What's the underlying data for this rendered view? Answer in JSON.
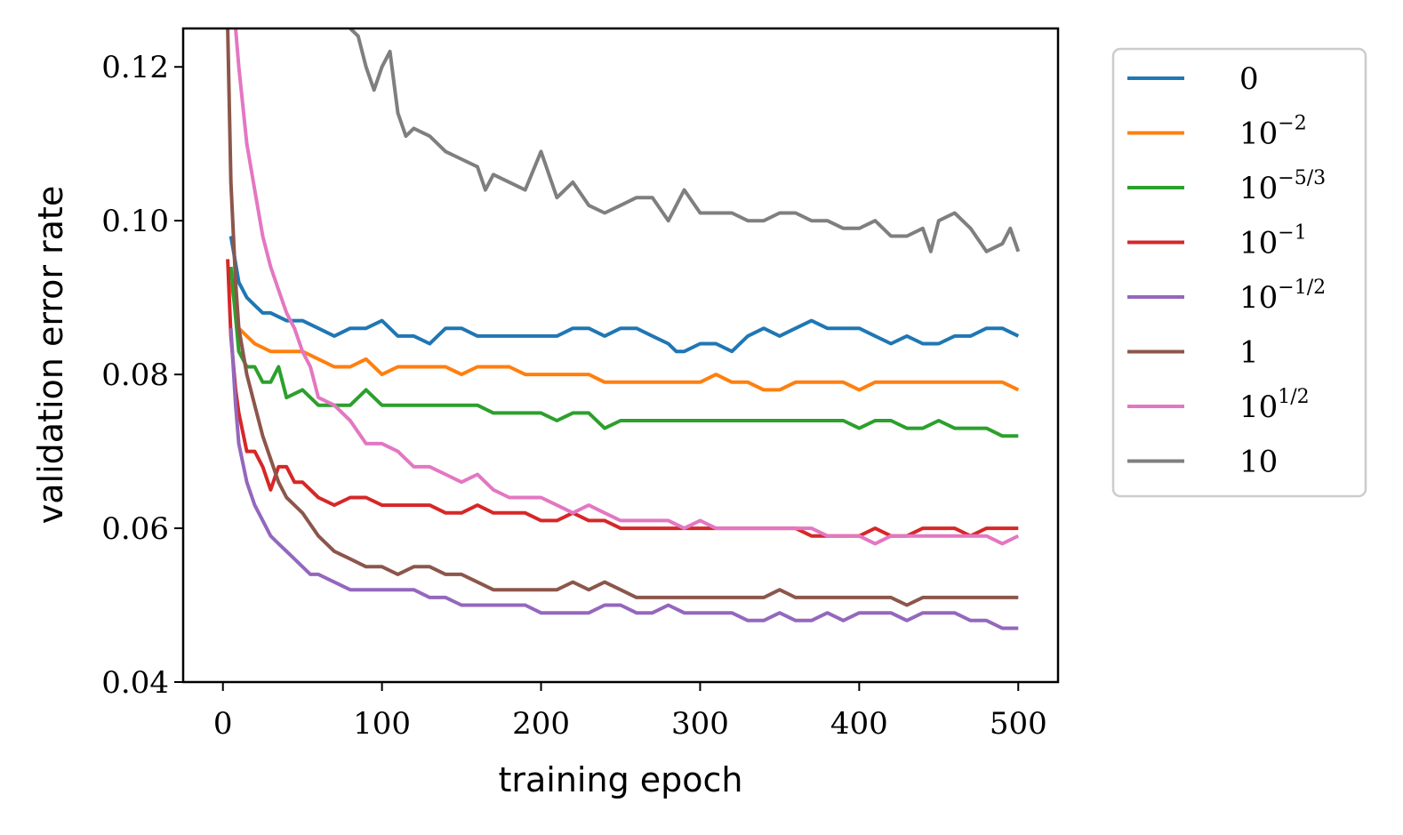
{
  "chart_data": {
    "type": "line",
    "title": "",
    "xlabel": "training epoch",
    "ylabel": "validation error rate",
    "xlim": [
      -25,
      525
    ],
    "ylim": [
      0.04,
      0.125
    ],
    "xticks": [
      0,
      100,
      200,
      300,
      400,
      500
    ],
    "xtick_labels": [
      "0",
      "100",
      "200",
      "300",
      "400",
      "500"
    ],
    "yticks": [
      0.04,
      0.06,
      0.08,
      0.1,
      0.12
    ],
    "ytick_labels": [
      "0.04",
      "0.06",
      "0.08",
      "0.10",
      "0.12"
    ],
    "grid": false,
    "legend_position": "outside-right-top",
    "series": [
      {
        "name": "0",
        "base": "0",
        "exp": "",
        "color": "#1f77b4",
        "x": [
          5,
          10,
          15,
          20,
          25,
          30,
          40,
          50,
          60,
          70,
          80,
          90,
          100,
          110,
          120,
          130,
          140,
          150,
          160,
          170,
          180,
          190,
          200,
          210,
          220,
          230,
          240,
          250,
          260,
          270,
          280,
          285,
          290,
          300,
          310,
          320,
          330,
          340,
          350,
          360,
          370,
          380,
          390,
          400,
          410,
          420,
          430,
          440,
          450,
          460,
          470,
          480,
          490,
          500
        ],
        "y": [
          0.098,
          0.092,
          0.09,
          0.089,
          0.088,
          0.088,
          0.087,
          0.087,
          0.086,
          0.085,
          0.086,
          0.086,
          0.087,
          0.085,
          0.085,
          0.084,
          0.086,
          0.086,
          0.085,
          0.085,
          0.085,
          0.085,
          0.085,
          0.085,
          0.086,
          0.086,
          0.085,
          0.086,
          0.086,
          0.085,
          0.084,
          0.083,
          0.083,
          0.084,
          0.084,
          0.083,
          0.085,
          0.086,
          0.085,
          0.086,
          0.087,
          0.086,
          0.086,
          0.086,
          0.085,
          0.084,
          0.085,
          0.084,
          0.084,
          0.085,
          0.085,
          0.086,
          0.086,
          0.085
        ]
      },
      {
        "name": "10^-2",
        "base": "10",
        "exp": "−2",
        "color": "#ff7f0e",
        "x": [
          5,
          10,
          15,
          20,
          30,
          40,
          50,
          60,
          70,
          80,
          90,
          100,
          110,
          120,
          130,
          140,
          150,
          160,
          170,
          180,
          190,
          200,
          210,
          220,
          230,
          240,
          250,
          260,
          270,
          280,
          290,
          300,
          310,
          320,
          330,
          340,
          350,
          360,
          370,
          380,
          390,
          400,
          410,
          420,
          430,
          440,
          450,
          460,
          470,
          480,
          490,
          500
        ],
        "y": [
          0.092,
          0.086,
          0.085,
          0.084,
          0.083,
          0.083,
          0.083,
          0.082,
          0.081,
          0.081,
          0.082,
          0.08,
          0.081,
          0.081,
          0.081,
          0.081,
          0.08,
          0.081,
          0.081,
          0.081,
          0.08,
          0.08,
          0.08,
          0.08,
          0.08,
          0.079,
          0.079,
          0.079,
          0.079,
          0.079,
          0.079,
          0.079,
          0.08,
          0.079,
          0.079,
          0.078,
          0.078,
          0.079,
          0.079,
          0.079,
          0.079,
          0.078,
          0.079,
          0.079,
          0.079,
          0.079,
          0.079,
          0.079,
          0.079,
          0.079,
          0.079,
          0.078
        ]
      },
      {
        "name": "10^-5/3",
        "base": "10",
        "exp": "−5/3",
        "color": "#2ca02c",
        "x": [
          5,
          10,
          15,
          20,
          25,
          30,
          35,
          40,
          50,
          60,
          70,
          80,
          90,
          100,
          110,
          120,
          130,
          140,
          150,
          160,
          170,
          180,
          190,
          200,
          210,
          220,
          230,
          240,
          250,
          260,
          270,
          280,
          290,
          300,
          310,
          320,
          330,
          340,
          350,
          360,
          370,
          380,
          390,
          400,
          410,
          420,
          430,
          440,
          450,
          460,
          470,
          480,
          490,
          500
        ],
        "y": [
          0.094,
          0.083,
          0.081,
          0.081,
          0.079,
          0.079,
          0.081,
          0.077,
          0.078,
          0.076,
          0.076,
          0.076,
          0.078,
          0.076,
          0.076,
          0.076,
          0.076,
          0.076,
          0.076,
          0.076,
          0.075,
          0.075,
          0.075,
          0.075,
          0.074,
          0.075,
          0.075,
          0.073,
          0.074,
          0.074,
          0.074,
          0.074,
          0.074,
          0.074,
          0.074,
          0.074,
          0.074,
          0.074,
          0.074,
          0.074,
          0.074,
          0.074,
          0.074,
          0.073,
          0.074,
          0.074,
          0.073,
          0.073,
          0.074,
          0.073,
          0.073,
          0.073,
          0.072,
          0.072
        ]
      },
      {
        "name": "10^-1",
        "base": "10",
        "exp": "−1",
        "color": "#d62728",
        "x": [
          3,
          5,
          8,
          10,
          15,
          20,
          25,
          30,
          35,
          40,
          45,
          50,
          60,
          70,
          80,
          90,
          100,
          110,
          120,
          130,
          140,
          150,
          160,
          170,
          180,
          190,
          200,
          210,
          220,
          230,
          240,
          250,
          260,
          270,
          280,
          290,
          300,
          310,
          320,
          330,
          340,
          350,
          360,
          370,
          380,
          390,
          400,
          410,
          420,
          430,
          440,
          450,
          460,
          470,
          480,
          490,
          500
        ],
        "y": [
          0.095,
          0.085,
          0.078,
          0.075,
          0.07,
          0.07,
          0.068,
          0.065,
          0.068,
          0.068,
          0.066,
          0.066,
          0.064,
          0.063,
          0.064,
          0.064,
          0.063,
          0.063,
          0.063,
          0.063,
          0.062,
          0.062,
          0.063,
          0.062,
          0.062,
          0.062,
          0.061,
          0.061,
          0.062,
          0.061,
          0.061,
          0.06,
          0.06,
          0.06,
          0.06,
          0.06,
          0.06,
          0.06,
          0.06,
          0.06,
          0.06,
          0.06,
          0.06,
          0.059,
          0.059,
          0.059,
          0.059,
          0.06,
          0.059,
          0.059,
          0.06,
          0.06,
          0.06,
          0.059,
          0.06,
          0.06,
          0.06
        ]
      },
      {
        "name": "10^-1/2",
        "base": "10",
        "exp": "−1/2",
        "color": "#9467bd",
        "x": [
          5,
          8,
          10,
          15,
          20,
          25,
          30,
          35,
          40,
          45,
          50,
          55,
          60,
          70,
          80,
          90,
          100,
          110,
          120,
          130,
          140,
          150,
          160,
          170,
          180,
          190,
          200,
          210,
          220,
          230,
          240,
          250,
          260,
          270,
          280,
          290,
          300,
          310,
          320,
          330,
          340,
          350,
          360,
          370,
          380,
          390,
          400,
          410,
          420,
          430,
          440,
          450,
          460,
          470,
          480,
          490,
          500
        ],
        "y": [
          0.086,
          0.076,
          0.071,
          0.066,
          0.063,
          0.061,
          0.059,
          0.058,
          0.057,
          0.056,
          0.055,
          0.054,
          0.054,
          0.053,
          0.052,
          0.052,
          0.052,
          0.052,
          0.052,
          0.051,
          0.051,
          0.05,
          0.05,
          0.05,
          0.05,
          0.05,
          0.049,
          0.049,
          0.049,
          0.049,
          0.05,
          0.05,
          0.049,
          0.049,
          0.05,
          0.049,
          0.049,
          0.049,
          0.049,
          0.048,
          0.048,
          0.049,
          0.048,
          0.048,
          0.049,
          0.048,
          0.049,
          0.049,
          0.049,
          0.048,
          0.049,
          0.049,
          0.049,
          0.048,
          0.048,
          0.047,
          0.047
        ]
      },
      {
        "name": "1",
        "base": "1",
        "exp": "",
        "color": "#8c564b",
        "x": [
          3,
          5,
          8,
          10,
          15,
          20,
          25,
          30,
          35,
          40,
          45,
          50,
          60,
          70,
          80,
          90,
          100,
          110,
          120,
          130,
          140,
          150,
          160,
          170,
          180,
          190,
          200,
          210,
          220,
          230,
          240,
          250,
          260,
          270,
          280,
          290,
          300,
          310,
          320,
          330,
          340,
          350,
          360,
          370,
          380,
          390,
          400,
          410,
          420,
          430,
          440,
          450,
          460,
          470,
          480,
          490,
          500
        ],
        "y": [
          0.125,
          0.105,
          0.092,
          0.086,
          0.08,
          0.076,
          0.072,
          0.069,
          0.066,
          0.064,
          0.063,
          0.062,
          0.059,
          0.057,
          0.056,
          0.055,
          0.055,
          0.054,
          0.055,
          0.055,
          0.054,
          0.054,
          0.053,
          0.052,
          0.052,
          0.052,
          0.052,
          0.052,
          0.053,
          0.052,
          0.053,
          0.052,
          0.051,
          0.051,
          0.051,
          0.051,
          0.051,
          0.051,
          0.051,
          0.051,
          0.051,
          0.052,
          0.051,
          0.051,
          0.051,
          0.051,
          0.051,
          0.051,
          0.051,
          0.05,
          0.051,
          0.051,
          0.051,
          0.051,
          0.051,
          0.051,
          0.051
        ]
      },
      {
        "name": "10^1/2",
        "base": "10",
        "exp": "1/2",
        "color": "#e377c2",
        "x": [
          8,
          10,
          15,
          20,
          25,
          30,
          35,
          40,
          45,
          50,
          55,
          60,
          70,
          80,
          90,
          100,
          110,
          120,
          130,
          140,
          150,
          160,
          170,
          180,
          190,
          200,
          210,
          220,
          230,
          240,
          250,
          260,
          270,
          280,
          290,
          300,
          310,
          320,
          330,
          340,
          350,
          360,
          370,
          380,
          390,
          400,
          410,
          420,
          430,
          440,
          450,
          460,
          470,
          480,
          490,
          500
        ],
        "y": [
          0.125,
          0.12,
          0.11,
          0.104,
          0.098,
          0.094,
          0.091,
          0.088,
          0.086,
          0.083,
          0.081,
          0.077,
          0.076,
          0.074,
          0.071,
          0.071,
          0.07,
          0.068,
          0.068,
          0.067,
          0.066,
          0.067,
          0.065,
          0.064,
          0.064,
          0.064,
          0.063,
          0.062,
          0.063,
          0.062,
          0.061,
          0.061,
          0.061,
          0.061,
          0.06,
          0.061,
          0.06,
          0.06,
          0.06,
          0.06,
          0.06,
          0.06,
          0.06,
          0.059,
          0.059,
          0.059,
          0.058,
          0.059,
          0.059,
          0.059,
          0.059,
          0.059,
          0.059,
          0.059,
          0.058,
          0.059
        ]
      },
      {
        "name": "10",
        "base": "10",
        "exp": "",
        "color": "#7f7f7f",
        "x": [
          80,
          85,
          90,
          95,
          100,
          105,
          110,
          115,
          120,
          130,
          140,
          150,
          160,
          165,
          170,
          180,
          190,
          200,
          210,
          220,
          230,
          240,
          250,
          260,
          270,
          280,
          290,
          300,
          310,
          320,
          330,
          340,
          350,
          360,
          370,
          380,
          390,
          400,
          410,
          420,
          430,
          440,
          445,
          450,
          460,
          470,
          480,
          490,
          495,
          500
        ],
        "y": [
          0.125,
          0.124,
          0.12,
          0.117,
          0.12,
          0.122,
          0.114,
          0.111,
          0.112,
          0.111,
          0.109,
          0.108,
          0.107,
          0.104,
          0.106,
          0.105,
          0.104,
          0.109,
          0.103,
          0.105,
          0.102,
          0.101,
          0.102,
          0.103,
          0.103,
          0.1,
          0.104,
          0.101,
          0.101,
          0.101,
          0.1,
          0.1,
          0.101,
          0.101,
          0.1,
          0.1,
          0.099,
          0.099,
          0.1,
          0.098,
          0.098,
          0.099,
          0.096,
          0.1,
          0.101,
          0.099,
          0.096,
          0.097,
          0.099,
          0.096
        ]
      }
    ]
  }
}
